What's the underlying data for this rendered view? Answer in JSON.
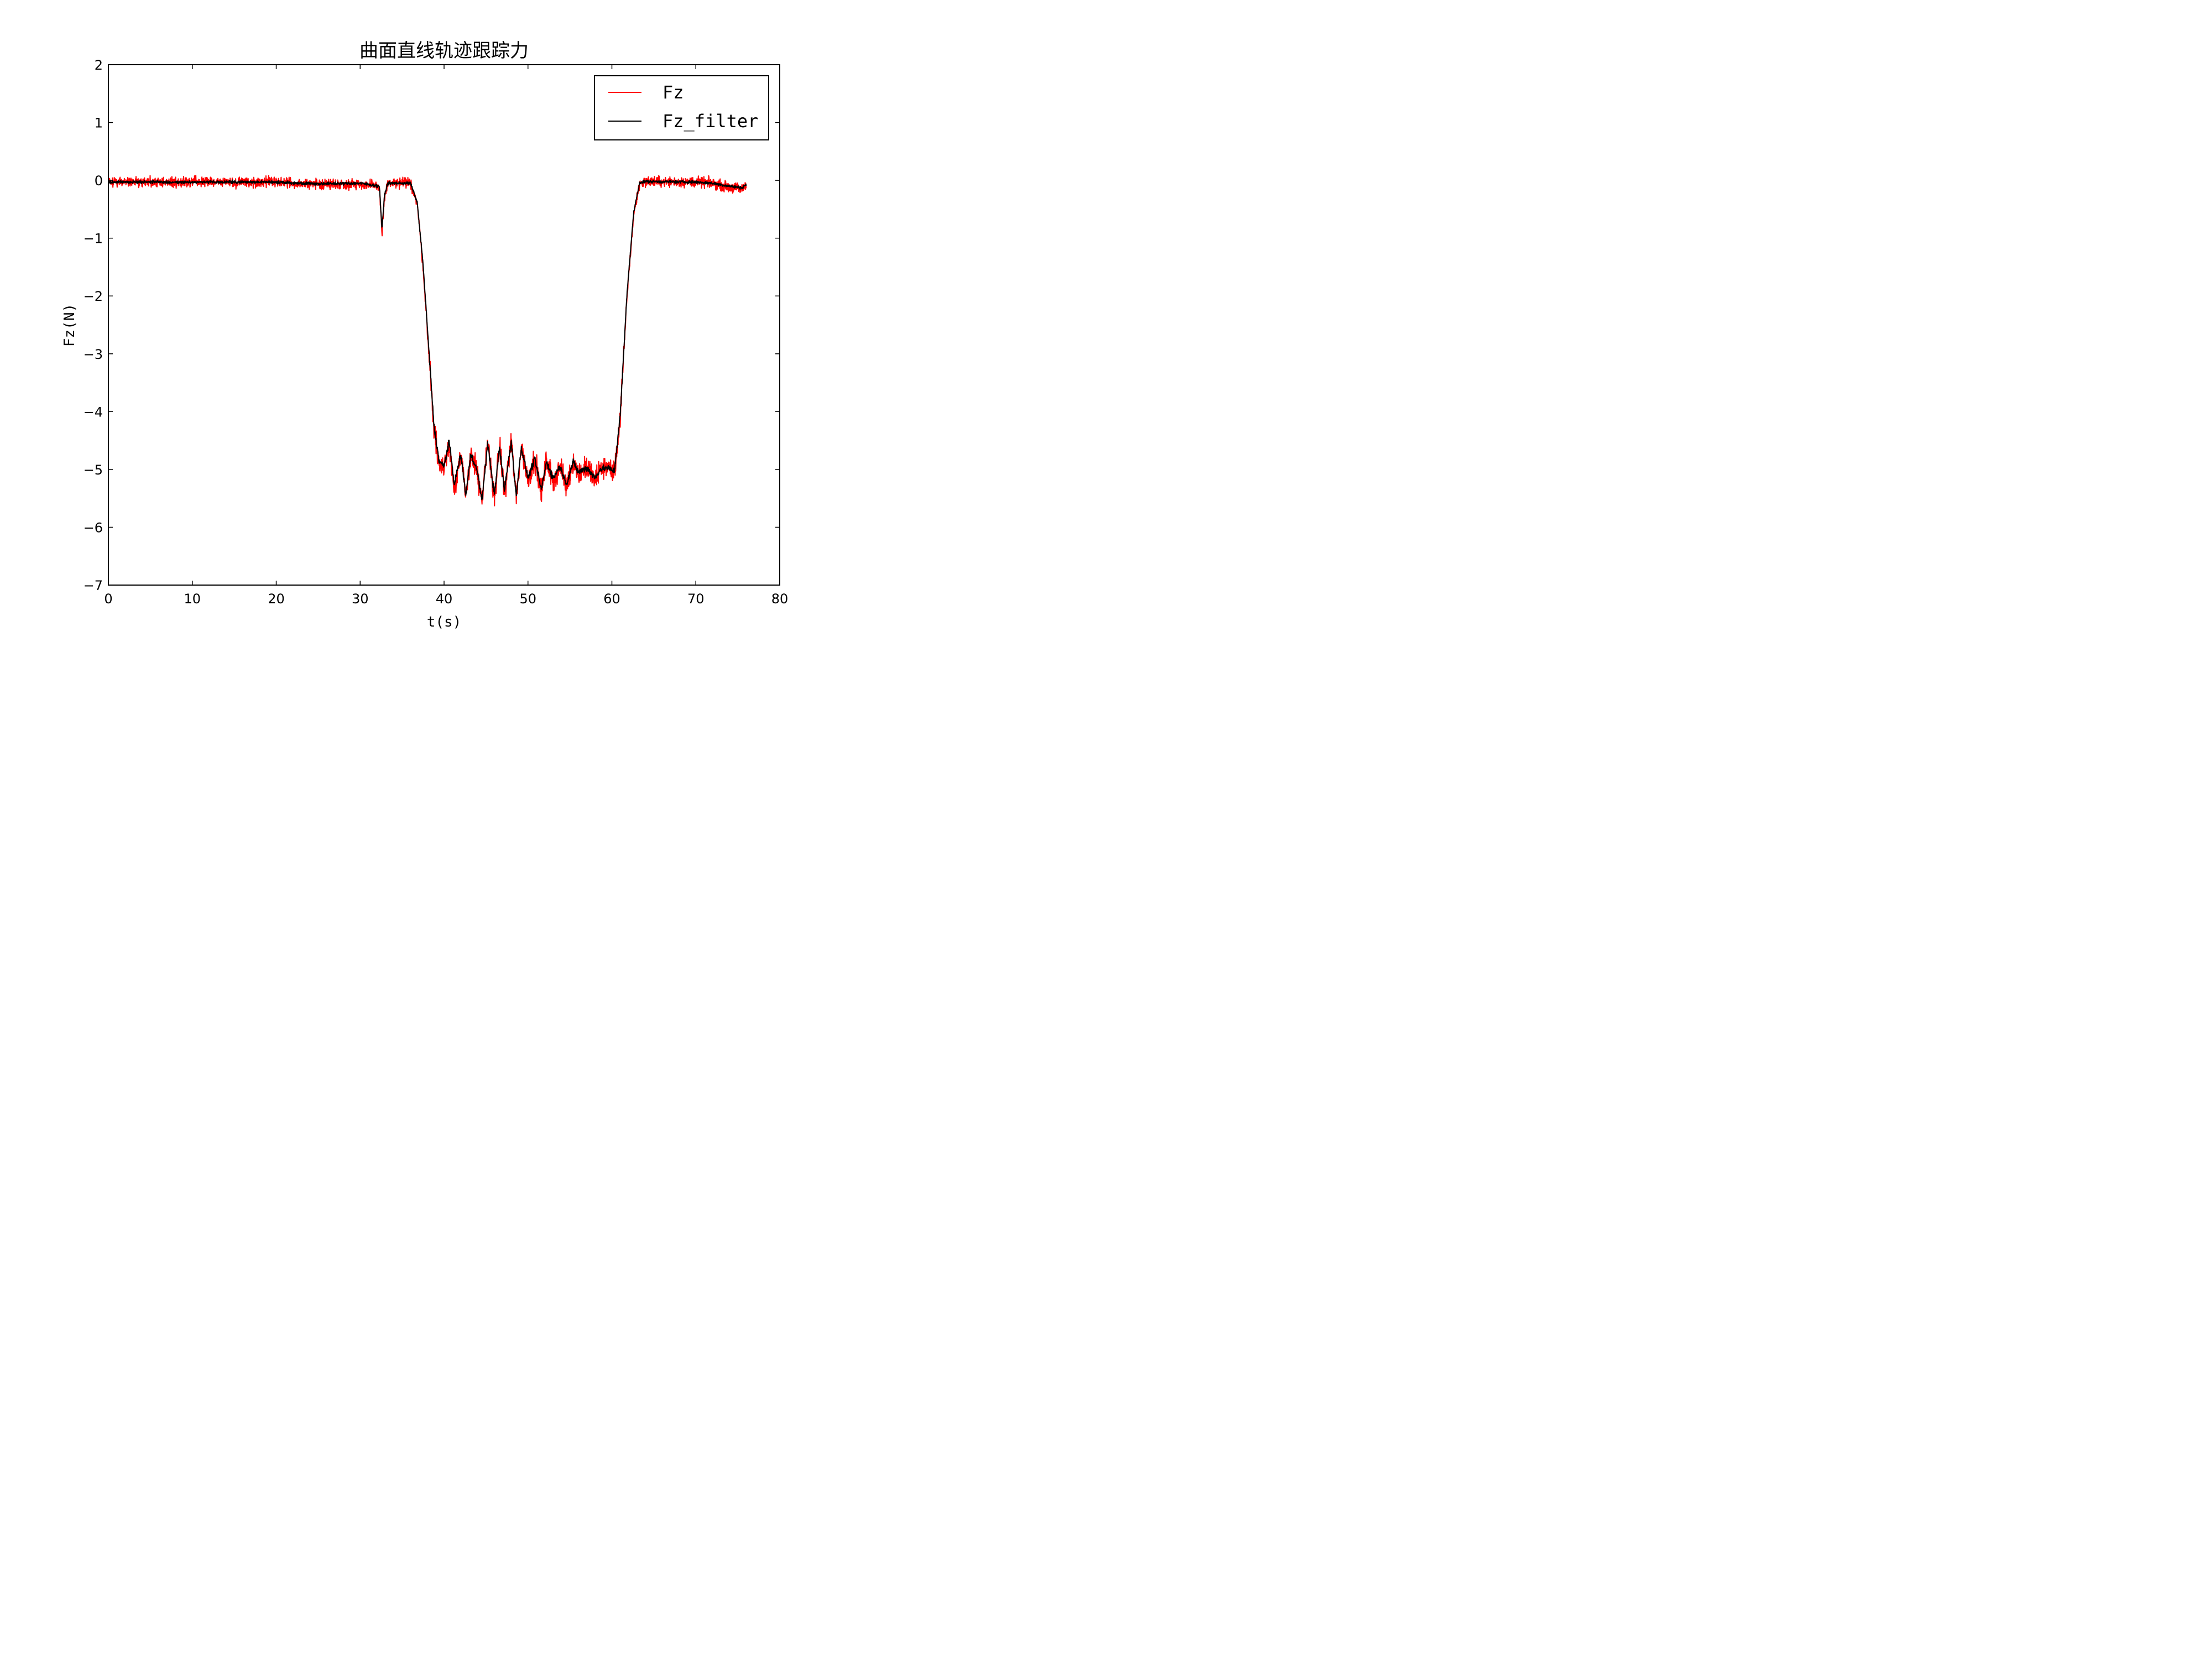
{
  "chart_data": {
    "type": "line",
    "title": "曲面直线轨迹跟踪力",
    "xlabel": "t(s)",
    "ylabel": "Fz(N)",
    "xlim": [
      0,
      80
    ],
    "ylim": [
      -7,
      2
    ],
    "x_ticks": [
      0,
      10,
      20,
      30,
      40,
      50,
      60,
      70,
      80
    ],
    "x_tick_labels": [
      "0",
      "10",
      "20",
      "30",
      "40",
      "50",
      "60",
      "70",
      "80"
    ],
    "y_ticks": [
      2,
      1,
      0,
      -1,
      -2,
      -3,
      -4,
      -5,
      -6,
      -7
    ],
    "y_tick_labels": [
      "2",
      "1",
      "0",
      "−1",
      "−2",
      "−3",
      "−4",
      "−5",
      "−6",
      "−7"
    ],
    "grid": false,
    "legend": "top-right",
    "series": [
      {
        "name": "Fz",
        "color": "#ff0000",
        "noise": 0.09,
        "x": [
          0,
          20,
          21,
          25,
          30,
          32.3,
          32.6,
          32.9,
          33.3,
          36,
          36.8,
          37.5,
          38.2,
          38.8,
          39.4,
          40,
          40.6,
          41.2,
          42,
          42.6,
          43.2,
          44,
          44.5,
          45.2,
          46,
          46.6,
          47.2,
          48,
          48.6,
          49.2,
          50,
          50.8,
          51.6,
          52.2,
          53,
          53.8,
          54.6,
          55.4,
          56,
          57,
          58,
          58.6,
          59.4,
          60.3,
          61,
          61.8,
          62.6,
          63.3,
          64,
          70,
          72,
          74,
          75.5,
          76
        ],
        "y": [
          -0.03,
          -0.03,
          -0.04,
          -0.07,
          -0.06,
          -0.12,
          -0.9,
          -0.3,
          -0.05,
          -0.05,
          -0.4,
          -1.5,
          -3,
          -4.3,
          -4.9,
          -5.0,
          -4.55,
          -5.3,
          -4.75,
          -5.5,
          -4.7,
          -5.1,
          -5.6,
          -4.5,
          -5.5,
          -4.6,
          -5.4,
          -4.5,
          -5.5,
          -4.6,
          -5.2,
          -4.8,
          -5.4,
          -4.85,
          -5.2,
          -4.95,
          -5.3,
          -4.85,
          -5.1,
          -4.95,
          -5.2,
          -5.0,
          -4.95,
          -5.05,
          -4.1,
          -2.0,
          -0.6,
          -0.05,
          -0.02,
          -0.03,
          -0.05,
          -0.12,
          -0.15,
          -0.08
        ]
      },
      {
        "name": "Fz_filter",
        "color": "#000000",
        "noise": 0.025,
        "x": [
          0,
          20,
          21,
          25,
          30,
          32.3,
          32.6,
          32.9,
          33.3,
          36,
          36.8,
          37.5,
          38.2,
          38.8,
          39.4,
          40,
          40.6,
          41.2,
          42,
          42.6,
          43.2,
          44,
          44.5,
          45.2,
          46,
          46.6,
          47.2,
          48,
          48.6,
          49.2,
          50,
          50.8,
          51.6,
          52.2,
          53,
          53.8,
          54.6,
          55.4,
          56,
          57,
          58,
          58.6,
          59.4,
          60.3,
          61,
          61.8,
          62.6,
          63.3,
          64,
          70,
          72,
          74,
          75.5,
          76
        ],
        "y": [
          -0.03,
          -0.03,
          -0.04,
          -0.06,
          -0.05,
          -0.1,
          -0.85,
          -0.25,
          -0.05,
          -0.05,
          -0.38,
          -1.45,
          -2.95,
          -4.25,
          -4.85,
          -4.95,
          -4.5,
          -5.25,
          -4.75,
          -5.45,
          -4.72,
          -5.05,
          -5.55,
          -4.55,
          -5.45,
          -4.62,
          -5.35,
          -4.52,
          -5.45,
          -4.62,
          -5.15,
          -4.82,
          -5.35,
          -4.87,
          -5.15,
          -4.95,
          -5.25,
          -4.87,
          -5.05,
          -4.97,
          -5.15,
          -5.0,
          -4.97,
          -5.03,
          -4.05,
          -1.95,
          -0.55,
          -0.04,
          -0.02,
          -0.03,
          -0.05,
          -0.1,
          -0.13,
          -0.07
        ]
      }
    ]
  }
}
